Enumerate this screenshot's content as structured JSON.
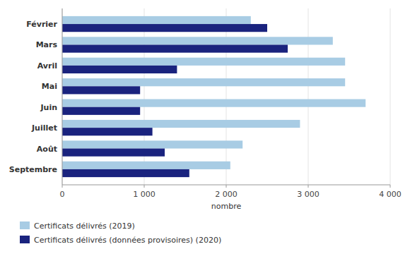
{
  "chart_data": {
    "type": "bar",
    "orientation": "horizontal",
    "categories": [
      "Septembre",
      "Août",
      "Juillet",
      "Juin",
      "Mai",
      "Avril",
      "Mars",
      "Février"
    ],
    "series": [
      {
        "name": "Certificats délivrés (2019)",
        "color": "#a8cce4",
        "values": [
          2050,
          2200,
          2900,
          3700,
          3450,
          3450,
          3300,
          2300
        ]
      },
      {
        "name": "Certificats délivrés (données provisoires) (2020)",
        "color": "#1a237e",
        "values": [
          1550,
          1250,
          1100,
          950,
          950,
          1400,
          2750,
          2500
        ]
      }
    ],
    "x_label": "nombre",
    "xlim": [
      0,
      4000
    ],
    "xticks": [
      0,
      {
        "value": 1000,
        "label": "1 000"
      },
      {
        "value": 2000,
        "label": "2 000"
      },
      {
        "value": 3000,
        "label": "3 000"
      },
      {
        "value": 4000,
        "label": "4 000"
      }
    ],
    "grid": true,
    "legend": "lower left"
  }
}
